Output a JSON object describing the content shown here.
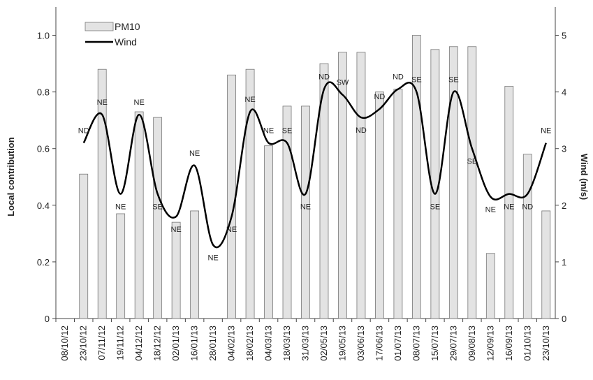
{
  "chart_data": {
    "type": "bar-line",
    "categories": [
      "08/10/12",
      "23/10/12",
      "07/11/12",
      "19/11/12",
      "04/12/12",
      "18/12/12",
      "02/01/13",
      "16/01/13",
      "28/01/13",
      "04/02/13",
      "18/02/13",
      "04/03/13",
      "18/03/13",
      "31/03/13",
      "02/05/13",
      "19/05/13",
      "03/06/13",
      "17/06/13",
      "01/07/13",
      "08/07/13",
      "15/07/13",
      "29/07/13",
      "09/08/13",
      "12/09/13",
      "16/09/13",
      "01/10/13",
      "23/10/13"
    ],
    "y_label": "Local contribution",
    "y2_label": "Wind (m/s)",
    "ylim": [
      0,
      1.1
    ],
    "yticks": [
      0,
      {
        "value": 0.2,
        "label": "0.2"
      },
      {
        "value": 0.4,
        "label": "0.4"
      },
      {
        "value": 0.6,
        "label": "0.6"
      },
      {
        "value": 0.8,
        "label": "0.8"
      },
      {
        "value": 1.0,
        "label": "1.0"
      }
    ],
    "y2lim": [
      0,
      5.5
    ],
    "y2ticks": [
      0,
      1,
      2,
      3,
      4,
      5
    ],
    "legend": "upper left",
    "series": [
      {
        "name": "PM10",
        "kind": "bar",
        "color": "#e3e3e3",
        "values": [
          null,
          0.51,
          0.88,
          0.37,
          0.73,
          0.71,
          0.34,
          0.38,
          null,
          0.86,
          0.88,
          0.61,
          0.75,
          0.75,
          0.9,
          0.94,
          0.94,
          0.8,
          0.81,
          1.0,
          0.95,
          0.96,
          0.96,
          0.23,
          0.82,
          0.58,
          0.38
        ]
      },
      {
        "name": "Wind",
        "kind": "line",
        "axis": "y2",
        "color": "#000000",
        "values": [
          null,
          3.1,
          3.6,
          2.2,
          3.6,
          2.2,
          1.8,
          2.7,
          1.3,
          1.8,
          3.65,
          3.1,
          3.1,
          2.2,
          4.05,
          3.95,
          3.55,
          3.7,
          4.05,
          4.0,
          2.2,
          4.0,
          3.0,
          2.15,
          2.2,
          2.2,
          3.1
        ],
        "directions": [
          null,
          "ND",
          "NE",
          "NE",
          "NE",
          "SE",
          "NE",
          "NE",
          "NE",
          "NE",
          "NE",
          "NE",
          "SE",
          "NE",
          "ND",
          "SW",
          "ND",
          "ND",
          "ND",
          "SE",
          "SE",
          "SE",
          "SE",
          "NE",
          "NE",
          "ND",
          "NE"
        ]
      }
    ]
  }
}
